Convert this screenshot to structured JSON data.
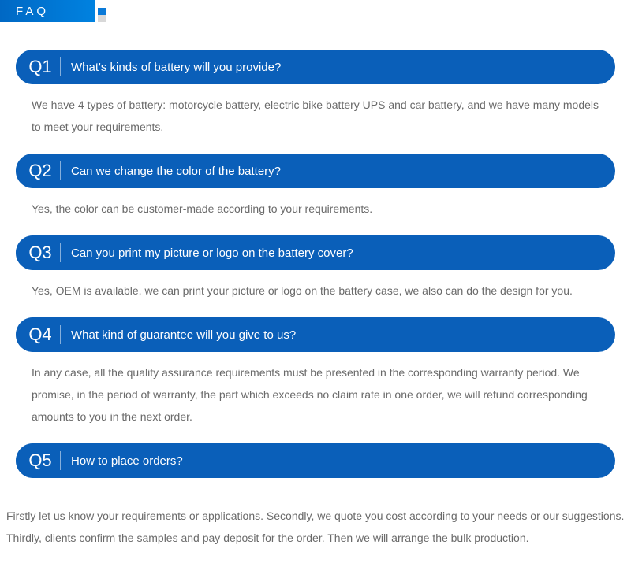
{
  "header": {
    "title": "FAQ"
  },
  "colors": {
    "primary_blue": "#0a5fb9",
    "header_gradient_start": "#0068c4",
    "header_gradient_end": "#0082e0",
    "text_gray": "#6a6a6a",
    "background": "#ffffff"
  },
  "typography": {
    "q_number_fontsize": 22,
    "question_fontsize": 15,
    "answer_fontsize": 14,
    "answer_lineheight": 2.0
  },
  "faq_items": [
    {
      "number": "Q1",
      "question": "What's kinds of battery will you provide?",
      "answer": "We have 4 types of battery: motorcycle battery, electric bike battery UPS and car battery, and we have many models to meet your requirements."
    },
    {
      "number": "Q2",
      "question": "Can we change the color of the battery?",
      "answer": "Yes, the color can be customer-made according to your requirements."
    },
    {
      "number": "Q3",
      "question": "Can you print my picture or logo on the battery cover?",
      "answer": "Yes, OEM is available, we can print your picture or logo on the battery case, we also can do the design for you."
    },
    {
      "number": "Q4",
      "question": "What kind of guarantee will you give to us?",
      "answer": "In any case, all the quality assurance requirements must be presented in the corresponding warranty period. We promise, in the period of warranty, the part which exceeds no claim rate in one order, we will refund corresponding amounts to you in the next order."
    },
    {
      "number": "Q5",
      "question": "How to place orders?",
      "answer": "Firstly let us know your requirements or applications. Secondly, we quote you cost according to your needs or our suggestions. Thirdly, clients confirm the samples and pay deposit for the order. Then we will arrange the bulk production."
    }
  ]
}
